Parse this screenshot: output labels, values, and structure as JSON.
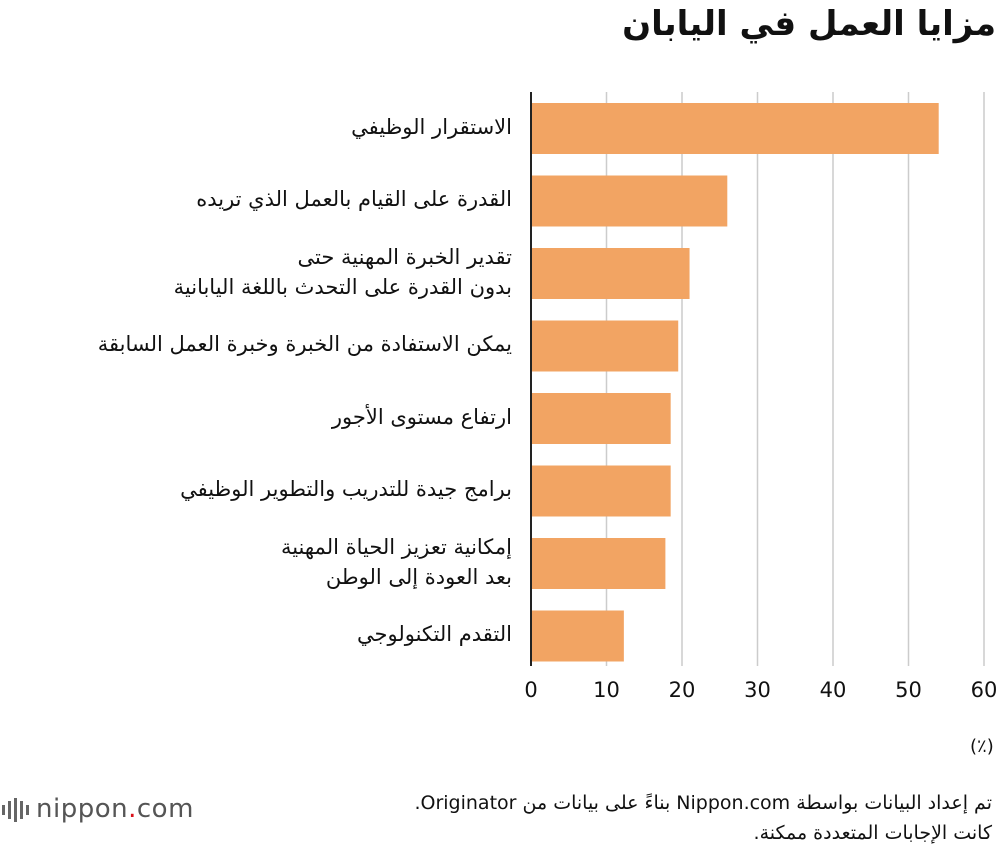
{
  "title": "مزايا العمل في اليابان",
  "unit_label": "(٪)",
  "footer": {
    "line1": "تم إعداد البيانات بواسطة Nippon.com بناءً على بيانات من Originator.",
    "line2": "كانت الإجابات المتعددة ممكنة."
  },
  "logo": {
    "name": "nippon",
    "dot": ".",
    "suffix": "com"
  },
  "colors": {
    "bar": "#f2a463",
    "grid": "#cccccc",
    "axis": "#222222"
  },
  "chart_data": {
    "type": "bar",
    "orientation": "horizontal",
    "categories": [
      [
        "الاستقرار الوظيفي"
      ],
      [
        "القدرة على القيام بالعمل الذي تريده"
      ],
      [
        "تقدير الخبرة المهنية حتى",
        "بدون القدرة على التحدث باللغة اليابانية"
      ],
      [
        "يمكن الاستفادة من الخبرة وخبرة العمل السابقة"
      ],
      [
        "ارتفاع مستوى الأجور"
      ],
      [
        "برامج جيدة للتدريب والتطوير الوظيفي"
      ],
      [
        "إمكانية تعزيز الحياة المهنية",
        "بعد العودة إلى الوطن"
      ],
      [
        "التقدم التكنولوجي"
      ]
    ],
    "values": [
      54,
      26,
      21,
      19.5,
      18.5,
      18.5,
      17.8,
      12.3
    ],
    "xlim": [
      0,
      60
    ],
    "xticks": [
      0,
      10,
      20,
      30,
      40,
      50,
      60
    ],
    "grid": true
  }
}
